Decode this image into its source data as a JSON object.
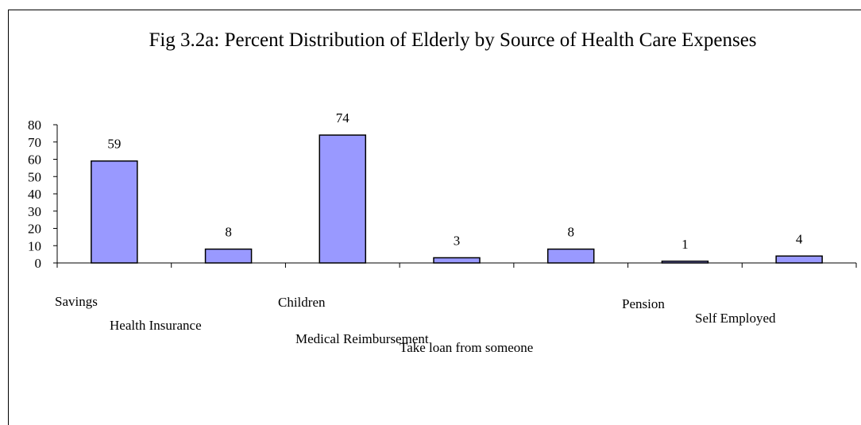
{
  "chart_data": {
    "type": "bar",
    "title": "Fig 3.2a: Percent Distribution of Elderly by Source of Health Care Expenses",
    "categories": [
      "Savings",
      "Health Insurance",
      "Children",
      "Medical Reimbursement",
      "Take loan from someone",
      "Pension",
      "Self Employed"
    ],
    "values": [
      59,
      8,
      74,
      3,
      8,
      1,
      4
    ],
    "ylim": [
      0,
      80
    ],
    "yticks": [
      0,
      10,
      20,
      30,
      40,
      50,
      60,
      70,
      80
    ],
    "xlabel": "",
    "ylabel": "",
    "grid": false,
    "legend": "none",
    "bar_color": "#9999ff",
    "bar_stroke": "#000000"
  }
}
